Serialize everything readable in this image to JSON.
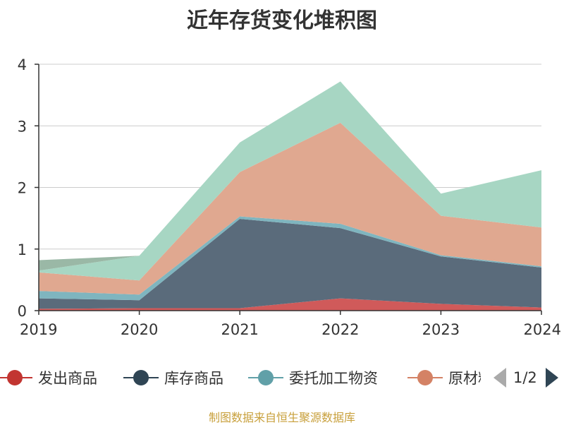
{
  "chart_data": {
    "type": "area",
    "stacked": true,
    "title": "近年存货变化堆积图",
    "ylabel": "",
    "x": [
      "2019",
      "2020",
      "2021",
      "2022",
      "2023",
      "2024"
    ],
    "ylim": [
      0,
      4
    ],
    "yticks": [
      "0",
      "1",
      "2",
      "3",
      "4"
    ],
    "grid": true,
    "legend_position": "bottom",
    "series": [
      {
        "name": "发出商品",
        "color": "#d05a5a",
        "values": [
          0.03,
          0.04,
          0.04,
          0.2,
          0.11,
          0.05
        ]
      },
      {
        "name": "库存商品",
        "color": "#5a6b7b",
        "values": [
          0.17,
          0.13,
          1.45,
          1.14,
          0.77,
          0.65
        ]
      },
      {
        "name": "委托加工物资",
        "color": "#7fb5bf",
        "values": [
          0.12,
          0.09,
          0.04,
          0.07,
          0.02,
          0.02
        ]
      },
      {
        "name": "原材料",
        "color": "#e0a890",
        "values": [
          0.3,
          0.23,
          0.72,
          1.64,
          0.64,
          0.63
        ]
      },
      {
        "name": "",
        "color": "#a7d6c3",
        "values": [
          0.03,
          0.4,
          0.48,
          0.67,
          0.36,
          0.93
        ]
      },
      {
        "name": "",
        "color": "#9ab8a6",
        "values": [
          0.17,
          0.0,
          0.0,
          0.0,
          0.0,
          0.0
        ]
      }
    ]
  },
  "legend": {
    "items": [
      {
        "label": "发出商品",
        "color": "#c23531"
      },
      {
        "label": "库存商品",
        "color": "#2f4554"
      },
      {
        "label": "委托加工物资",
        "color": "#61a0a8"
      },
      {
        "label": "原材料",
        "color": "#d48265"
      }
    ],
    "page_text": "1/2"
  },
  "source_note": "制图数据来自恒生聚源数据库"
}
